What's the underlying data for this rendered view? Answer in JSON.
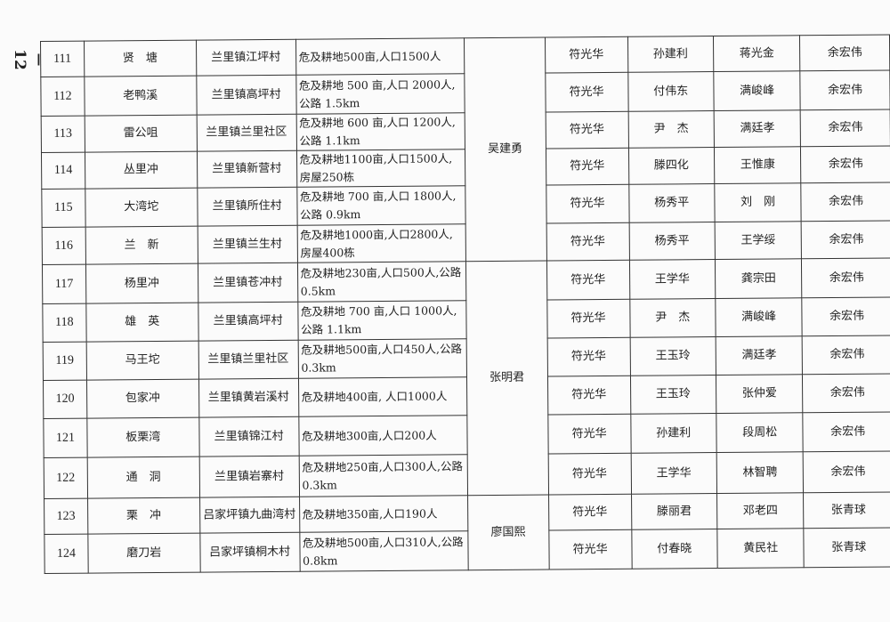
{
  "page_number": "－ 12 －",
  "rows": [
    {
      "no": "111",
      "name": "贤　塘",
      "location": "兰里镇江坪村",
      "impact": "危及耕地500亩,人口1500人",
      "p1": "符光华",
      "p2": "孙建利",
      "p3": "蒋光金",
      "p4": "余宏伟"
    },
    {
      "no": "112",
      "name": "老鸭溪",
      "location": "兰里镇高坪村",
      "impact": "危及耕地 500 亩,人口 2000人,公路 1.5km",
      "p1": "符光华",
      "p2": "付伟东",
      "p3": "满峻峰",
      "p4": "余宏伟"
    },
    {
      "no": "113",
      "name": "雷公咀",
      "location": "兰里镇兰里社区",
      "impact": "危及耕地 600 亩,人口 1200人,公路 1.1km",
      "p1": "符光华",
      "p2": "尹　杰",
      "p3": "满廷孝",
      "p4": "余宏伟"
    },
    {
      "no": "114",
      "name": "丛里冲",
      "location": "兰里镇新营村",
      "impact": "危及耕地1100亩,人口1500人, 房屋250栋",
      "p1": "符光华",
      "p2": "滕四化",
      "p3": "王惟康",
      "p4": "余宏伟"
    },
    {
      "no": "115",
      "name": "大湾坨",
      "location": "兰里镇所住村",
      "impact": "危及耕地 700 亩,人口 1800人,公路 0.9km",
      "p1": "符光华",
      "p2": "杨秀平",
      "p3": "刘　刚",
      "p4": "余宏伟"
    },
    {
      "no": "116",
      "name": "兰　新",
      "location": "兰里镇兰生村",
      "impact": "危及耕地1000亩,人口2800人, 房屋400栋",
      "p1": "符光华",
      "p2": "杨秀平",
      "p3": "王学绥",
      "p4": "余宏伟"
    },
    {
      "no": "117",
      "name": "杨里冲",
      "location": "兰里镇苍冲村",
      "impact": "危及耕地230亩,人口500人,公路 0.5km",
      "p1": "符光华",
      "p2": "王学华",
      "p3": "龚宗田",
      "p4": "余宏伟"
    },
    {
      "no": "118",
      "name": "雄　英",
      "location": "兰里镇高坪村",
      "impact": "危及耕地 700 亩,人口 1000人,公路 1.1km",
      "p1": "符光华",
      "p2": "尹　杰",
      "p3": "满峻峰",
      "p4": "余宏伟"
    },
    {
      "no": "119",
      "name": "马王坨",
      "location": "兰里镇兰里社区",
      "impact": "危及耕地500亩,人口450人,公路 0.3km",
      "p1": "符光华",
      "p2": "王玉玲",
      "p3": "满廷孝",
      "p4": "余宏伟"
    },
    {
      "no": "120",
      "name": "包家冲",
      "location": "兰里镇黄岩溪村",
      "impact": "危及耕地400亩, 人口1000人",
      "p1": "符光华",
      "p2": "王玉玲",
      "p3": "张仲爱",
      "p4": "余宏伟"
    },
    {
      "no": "121",
      "name": "板栗湾",
      "location": "兰里镇锦江村",
      "impact": "危及耕地300亩,人口200人",
      "p1": "符光华",
      "p2": "孙建利",
      "p3": "段周松",
      "p4": "余宏伟"
    },
    {
      "no": "122",
      "name": "通　洞",
      "location": "兰里镇岩寨村",
      "impact": "危及耕地250亩,人口300人,公路 0.3km",
      "p1": "符光华",
      "p2": "王学华",
      "p3": "林智聘",
      "p4": "余宏伟"
    },
    {
      "no": "123",
      "name": "栗　冲",
      "location": "吕家坪镇九曲湾村",
      "impact": "危及耕地350亩,人口190人",
      "p1": "符光华",
      "p2": "滕丽君",
      "p3": "邓老四",
      "p4": "张青球"
    },
    {
      "no": "124",
      "name": "磨刀岩",
      "location": "吕家坪镇桐木村",
      "impact": "危及耕地500亩,人口310人,公路 0.8km",
      "p1": "符光华",
      "p2": "付春晓",
      "p3": "黄民社",
      "p4": "张青球"
    }
  ],
  "leaders": [
    {
      "name": "吴建勇",
      "span": 6
    },
    {
      "name": "张明君",
      "span": 6
    },
    {
      "name": "廖国熙",
      "span": 2
    }
  ]
}
